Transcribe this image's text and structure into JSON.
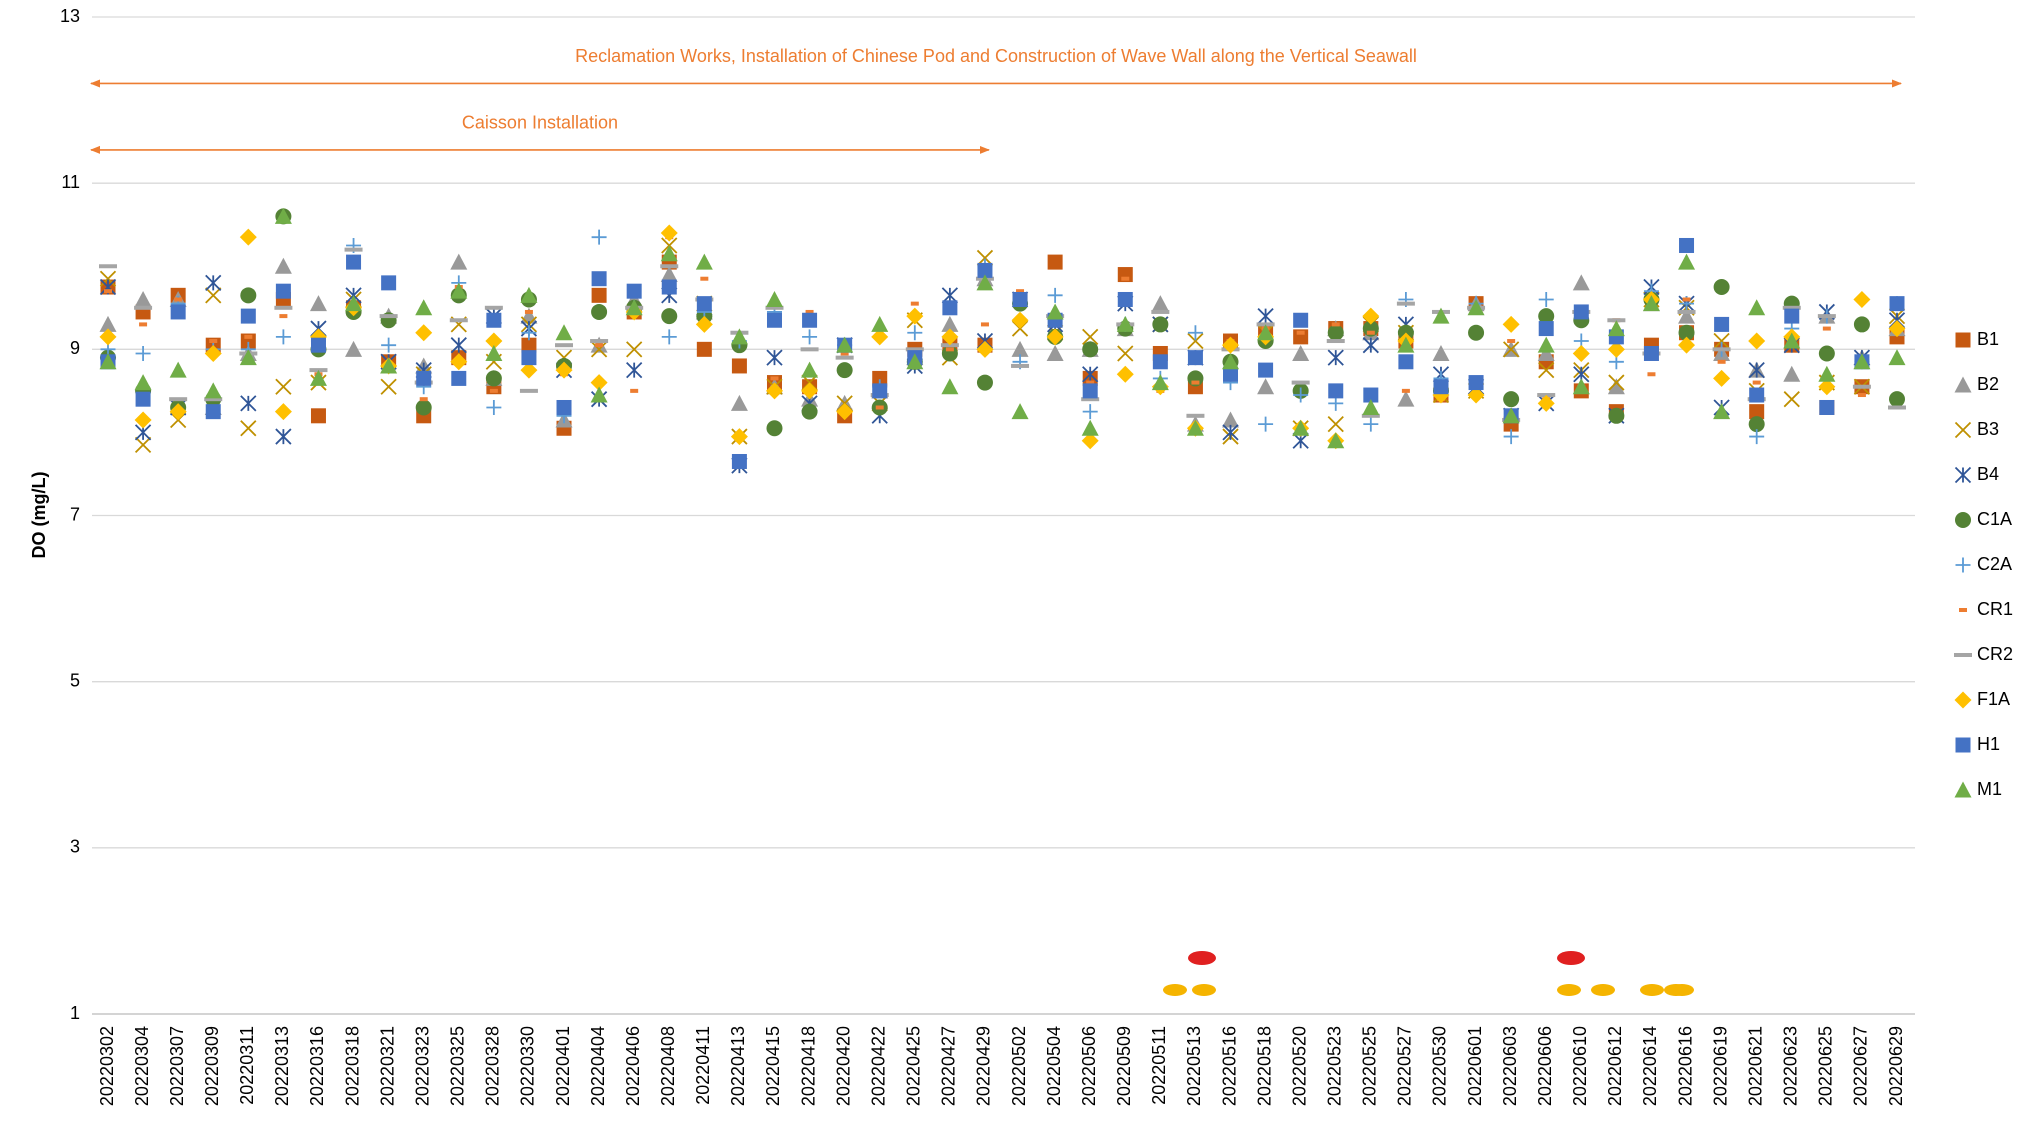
{
  "chart_data": {
    "type": "scatter",
    "y_label": "DO (mg/L)",
    "ylim": [
      1,
      13
    ],
    "yticks": [
      1,
      3,
      5,
      7,
      9,
      11,
      13
    ],
    "grid": true,
    "legend": "right",
    "categories": [
      "20220302",
      "20220304",
      "20220307",
      "20220309",
      "20220311",
      "20220313",
      "20220316",
      "20220318",
      "20220321",
      "20220323",
      "20220325",
      "20220328",
      "20220330",
      "20220401",
      "20220404",
      "20220406",
      "20220408",
      "20220411",
      "20220413",
      "20220415",
      "20220418",
      "20220420",
      "20220422",
      "20220425",
      "20220427",
      "20220429",
      "20220502",
      "20220504",
      "20220506",
      "20220509",
      "20220511",
      "20220513",
      "20220516",
      "20220518",
      "20220520",
      "20220523",
      "20220525",
      "20220527",
      "20220530",
      "20220601",
      "20220603",
      "20220606",
      "20220610",
      "20220612",
      "20220614",
      "20220616",
      "20220619",
      "20220621",
      "20220623",
      "20220625",
      "20220627",
      "20220629"
    ],
    "annotations": [
      {
        "text": "Reclamation Works, Installation of Chinese Pod and Construction of Wave Wall along the Vertical Seawall",
        "span": [
          "20220302",
          "20220629"
        ],
        "y": 12.2
      },
      {
        "text": "Caisson Installation",
        "span": [
          "20220302",
          "20220429"
        ],
        "y": 11.4
      }
    ],
    "series": [
      {
        "name": "B1",
        "color": "#c65911",
        "marker": "square",
        "values": [
          9.75,
          9.45,
          9.65,
          9.05,
          9.1,
          9.6,
          8.2,
          9.5,
          8.85,
          8.2,
          8.9,
          8.55,
          9.05,
          8.05,
          9.65,
          9.45,
          10.05,
          9.0,
          8.8,
          8.6,
          8.55,
          8.2,
          8.65,
          9.0,
          9.05,
          9.05,
          9.6,
          10.05,
          8.65,
          9.9,
          8.95,
          8.55,
          9.1,
          9.2,
          9.15,
          9.25,
          9.25,
          9.1,
          8.45,
          9.55,
          8.1,
          8.85,
          8.5,
          8.25,
          9.05,
          9.2,
          9.0,
          8.25,
          9.05,
          8.3,
          8.55,
          9.15
        ]
      },
      {
        "name": "B2",
        "color": "#999999",
        "marker": "triangle",
        "values": [
          9.3,
          9.6,
          9.6,
          8.3,
          8.95,
          10.0,
          9.55,
          9.0,
          9.4,
          8.8,
          10.05,
          8.65,
          9.4,
          8.15,
          9.05,
          9.6,
          9.9,
          9.45,
          8.35,
          8.55,
          8.4,
          8.35,
          8.5,
          8.9,
          9.3,
          9.85,
          9.0,
          8.95,
          9.0,
          9.25,
          9.55,
          8.1,
          8.15,
          8.55,
          8.95,
          9.25,
          9.2,
          8.4,
          8.95,
          9.55,
          9.0,
          8.95,
          9.8,
          8.55,
          9.55,
          9.4,
          8.95,
          8.75,
          8.7,
          9.4,
          8.9,
          9.25
        ]
      },
      {
        "name": "B3",
        "color": "#bf9000",
        "marker": "x",
        "values": [
          9.85,
          7.85,
          8.15,
          9.65,
          8.05,
          8.55,
          8.6,
          9.6,
          8.55,
          8.7,
          9.3,
          8.85,
          9.3,
          8.9,
          9.0,
          9.0,
          10.25,
          9.55,
          7.95,
          8.55,
          8.6,
          8.35,
          8.35,
          9.35,
          8.9,
          10.1,
          9.25,
          9.2,
          9.15,
          8.95,
          9.3,
          9.1,
          7.95,
          9.2,
          8.05,
          8.1,
          9.3,
          9.2,
          8.45,
          8.5,
          9.0,
          8.75,
          8.75,
          8.6,
          9.6,
          9.5,
          9.1,
          8.5,
          8.4,
          8.6,
          8.55,
          9.4
        ]
      },
      {
        "name": "B4",
        "color": "#2f5597",
        "marker": "asterisk",
        "values": [
          9.75,
          8.0,
          8.3,
          9.8,
          8.35,
          7.95,
          9.25,
          9.65,
          8.85,
          8.75,
          9.05,
          9.4,
          9.25,
          8.75,
          8.4,
          8.75,
          9.65,
          9.5,
          7.6,
          8.9,
          8.35,
          9.05,
          8.2,
          8.8,
          9.65,
          9.1,
          9.6,
          9.3,
          8.7,
          9.55,
          9.3,
          8.9,
          8.0,
          9.4,
          7.9,
          8.9,
          9.05,
          9.3,
          8.7,
          8.55,
          8.2,
          8.35,
          8.7,
          8.2,
          9.75,
          9.55,
          8.3,
          8.75,
          9.05,
          9.45,
          8.9,
          9.35
        ]
      },
      {
        "name": "C1A",
        "color": "#548235",
        "marker": "circle",
        "values": [
          8.9,
          8.5,
          8.3,
          8.4,
          9.65,
          10.6,
          9.0,
          9.45,
          9.35,
          8.3,
          9.65,
          8.65,
          9.6,
          8.8,
          9.45,
          9.5,
          9.4,
          9.4,
          9.05,
          8.05,
          8.25,
          8.75,
          8.3,
          8.85,
          8.95,
          8.6,
          9.55,
          9.15,
          9.0,
          9.25,
          9.3,
          8.65,
          8.85,
          9.1,
          8.5,
          9.2,
          9.25,
          9.2,
          8.5,
          9.2,
          8.4,
          9.4,
          9.35,
          8.2,
          9.6,
          9.2,
          9.75,
          8.1,
          9.55,
          8.95,
          9.3,
          8.4
        ]
      },
      {
        "name": "C2A",
        "color": "#5b9bd5",
        "marker": "plus",
        "values": [
          9.0,
          8.95,
          9.55,
          9.0,
          9.0,
          9.15,
          9.1,
          10.25,
          9.05,
          8.55,
          9.8,
          8.3,
          9.2,
          8.2,
          10.35,
          9.5,
          9.15,
          9.45,
          9.1,
          9.45,
          9.15,
          9.05,
          8.55,
          9.2,
          9.15,
          10.0,
          8.85,
          9.65,
          8.25,
          9.3,
          8.65,
          9.2,
          8.6,
          8.1,
          8.45,
          8.35,
          8.1,
          9.6,
          8.65,
          9.55,
          7.95,
          9.6,
          9.1,
          8.85,
          9.7,
          9.55,
          9.0,
          7.95,
          9.25,
          9.4,
          8.85,
          9.55
        ]
      },
      {
        "name": "CR1",
        "color": "#ed7d31",
        "marker": "dash",
        "values": [
          9.7,
          9.3,
          9.6,
          9.1,
          9.15,
          9.4,
          8.7,
          9.55,
          9.85,
          8.4,
          9.75,
          8.5,
          9.45,
          8.7,
          9.05,
          8.5,
          10.35,
          9.85,
          9.1,
          8.65,
          9.45,
          8.95,
          8.3,
          9.55,
          9.0,
          9.3,
          9.7,
          9.4,
          8.6,
          9.85,
          8.5,
          8.6,
          9.1,
          9.25,
          9.2,
          9.3,
          9.2,
          8.5,
          8.4,
          8.45,
          9.1,
          8.4,
          8.55,
          9.35,
          8.7,
          9.6,
          8.85,
          8.6,
          9.4,
          9.25,
          8.45,
          9.25
        ]
      },
      {
        "name": "CR2",
        "color": "#a5a5a5",
        "marker": "long-dash",
        "values": [
          10.0,
          9.5,
          8.4,
          8.4,
          8.95,
          9.5,
          8.75,
          10.2,
          9.4,
          8.6,
          9.35,
          9.5,
          8.5,
          9.05,
          9.1,
          9.5,
          10.0,
          9.6,
          9.2,
          9.5,
          9.0,
          8.9,
          8.45,
          9.0,
          9.05,
          9.85,
          8.8,
          9.4,
          8.4,
          9.3,
          9.45,
          8.2,
          9.0,
          9.3,
          8.6,
          9.1,
          8.2,
          9.55,
          9.45,
          9.5,
          8.15,
          8.45,
          9.45,
          9.35,
          8.95,
          9.45,
          9.0,
          8.4,
          9.5,
          9.4,
          8.55,
          8.3
        ]
      },
      {
        "name": "F1A",
        "color": "#ffc000",
        "marker": "diamond",
        "values": [
          9.15,
          8.15,
          8.25,
          8.95,
          10.35,
          8.25,
          9.15,
          9.5,
          8.8,
          9.2,
          8.85,
          9.1,
          8.75,
          8.75,
          8.6,
          9.45,
          10.4,
          9.3,
          7.95,
          8.5,
          8.5,
          8.25,
          9.15,
          9.4,
          9.15,
          9.0,
          9.35,
          9.15,
          7.9,
          8.7,
          8.55,
          8.05,
          9.05,
          9.15,
          8.05,
          7.9,
          9.4,
          9.1,
          8.45,
          8.45,
          9.3,
          8.35,
          8.95,
          9.0,
          9.6,
          9.05,
          8.65,
          9.1,
          9.15,
          8.55,
          9.6,
          9.25
        ]
      },
      {
        "name": "H1",
        "color": "#4472c4",
        "marker": "square",
        "values": [
          8.85,
          8.4,
          9.45,
          8.25,
          9.4,
          9.7,
          9.05,
          10.05,
          9.8,
          8.65,
          8.65,
          9.35,
          8.9,
          8.3,
          9.85,
          9.7,
          9.75,
          9.55,
          7.65,
          9.35,
          9.35,
          9.05,
          8.5,
          8.9,
          9.5,
          9.95,
          9.6,
          9.35,
          8.5,
          9.6,
          8.85,
          8.9,
          8.7,
          8.75,
          9.35,
          8.5,
          8.45,
          8.85,
          8.55,
          8.6,
          8.2,
          9.25,
          9.45,
          9.15,
          8.95,
          10.25,
          9.3,
          8.45,
          9.4,
          8.3,
          8.85,
          9.55
        ]
      },
      {
        "name": "M1",
        "color": "#70ad47",
        "marker": "triangle",
        "values": [
          8.85,
          8.6,
          8.75,
          8.5,
          8.9,
          10.6,
          8.65,
          9.55,
          8.8,
          9.5,
          9.7,
          8.95,
          9.65,
          9.2,
          8.45,
          9.5,
          10.15,
          10.05,
          9.15,
          9.6,
          8.75,
          9.05,
          9.3,
          8.85,
          8.55,
          9.8,
          8.25,
          9.45,
          8.05,
          9.3,
          8.6,
          8.05,
          8.85,
          9.2,
          8.05,
          7.9,
          8.3,
          9.05,
          9.4,
          9.5,
          8.2,
          9.05,
          8.55,
          9.25,
          9.55,
          10.05,
          8.25,
          9.5,
          9.1,
          8.7,
          8.85,
          8.9
        ]
      }
    ]
  }
}
